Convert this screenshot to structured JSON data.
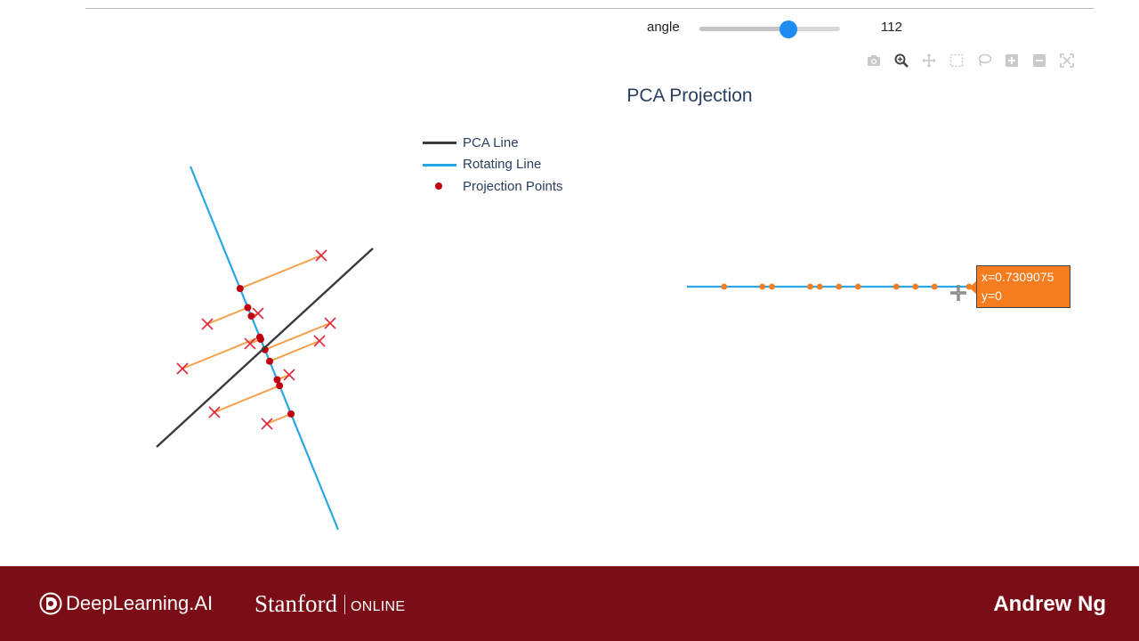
{
  "slider": {
    "label": "angle",
    "value": "112",
    "fraction": 0.63
  },
  "toolbar": {
    "buttons": [
      {
        "name": "camera-icon"
      },
      {
        "name": "zoom-icon",
        "active": true
      },
      {
        "name": "pan-icon"
      },
      {
        "name": "box-select-icon"
      },
      {
        "name": "lasso-select-icon"
      },
      {
        "name": "zoom-in-icon"
      },
      {
        "name": "zoom-out-icon"
      },
      {
        "name": "autoscale-icon"
      }
    ]
  },
  "plot": {
    "title": "PCA Projection"
  },
  "legend": {
    "items": [
      {
        "label": "PCA Line",
        "color": "#3a3a3a",
        "kind": "line"
      },
      {
        "label": "Rotating Line",
        "color": "#29a6e6",
        "kind": "line"
      },
      {
        "label": "Projection Points",
        "color": "#c0000f",
        "kind": "marker"
      }
    ]
  },
  "hover": {
    "x_text": "x=0.7309075",
    "y_text": "y=0"
  },
  "colors": {
    "pca_line": "#3a3a3a",
    "rotating_line": "#29a6e6",
    "projection_point": "#c0000f",
    "data_point": "#e0263a",
    "connector": "#f5a04a",
    "projected_1d": "#f57c1f"
  },
  "chart_data": {
    "type": "scatter",
    "description_kind": "pca-demo",
    "projected_x_values": [
      -0.55,
      -0.35,
      -0.3,
      -0.1,
      -0.05,
      0.05,
      0.15,
      0.35,
      0.45,
      0.55,
      0.73
    ]
  },
  "footer": {
    "brand": "DeepLearning.AI",
    "stanford": "Stanford",
    "online": "ONLINE",
    "presenter": "Andrew Ng"
  }
}
